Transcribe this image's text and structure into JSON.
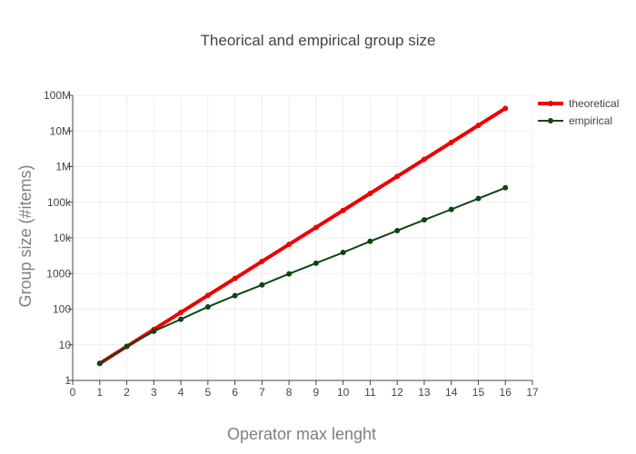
{
  "chart_data": {
    "type": "line",
    "title": "Theorical and empirical group size",
    "xlabel": "Operator max lenght",
    "ylabel": "Group size (#items)",
    "xlim": [
      0,
      17
    ],
    "ylim": [
      1,
      100000000
    ],
    "yscale": "log",
    "grid": true,
    "legend_position": "top-right",
    "x_ticks": [
      0,
      1,
      2,
      3,
      4,
      5,
      6,
      7,
      8,
      9,
      10,
      11,
      12,
      13,
      14,
      15,
      16,
      17
    ],
    "y_ticks": [
      {
        "value": 1,
        "label": "1"
      },
      {
        "value": 10,
        "label": "10"
      },
      {
        "value": 100,
        "label": "100"
      },
      {
        "value": 1000,
        "label": "1000"
      },
      {
        "value": 10000,
        "label": "10k"
      },
      {
        "value": 100000,
        "label": "100k"
      },
      {
        "value": 1000000,
        "label": "1M"
      },
      {
        "value": 10000000,
        "label": "10M"
      },
      {
        "value": 100000000,
        "label": "100M"
      }
    ],
    "x": [
      1,
      2,
      3,
      4,
      5,
      6,
      7,
      8,
      9,
      10,
      11,
      12,
      13,
      14,
      15,
      16
    ],
    "series": [
      {
        "name": "theoretical",
        "color": "#ee0000",
        "values": [
          3,
          9,
          27,
          81,
          243,
          729,
          2187,
          6561,
          19683,
          59049,
          177147,
          531441,
          1594323,
          4782969,
          14348907,
          43046721
        ]
      },
      {
        "name": "empirical",
        "color": "#0b4514",
        "values": [
          3,
          9,
          24,
          52,
          116,
          240,
          480,
          980,
          1950,
          3900,
          8000,
          16000,
          32000,
          63000,
          127000,
          255000
        ]
      }
    ]
  }
}
